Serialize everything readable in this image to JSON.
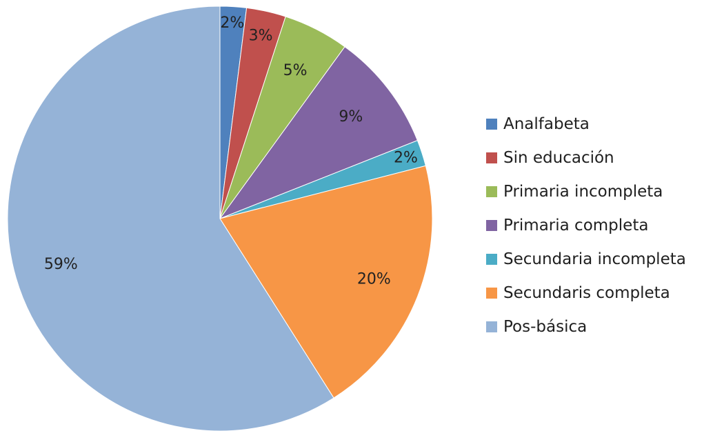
{
  "chart_data": {
    "type": "pie",
    "title": "",
    "legend_position": "right",
    "categories": [
      "Analfabeta",
      "Sin educación",
      "Primaria incompleta",
      "Primaria completa",
      "Secundaria incompleta",
      "Secundaris completa",
      "Pos-básica"
    ],
    "values": [
      2,
      3,
      5,
      9,
      2,
      20,
      59
    ],
    "labels": [
      "2%",
      "3%",
      "5%",
      "9%",
      "2%",
      "20%",
      "59%"
    ],
    "colors": [
      "#4F81BD",
      "#C0504D",
      "#9BBB59",
      "#8064A2",
      "#4BACC6",
      "#F79646",
      "#95B3D7"
    ]
  }
}
